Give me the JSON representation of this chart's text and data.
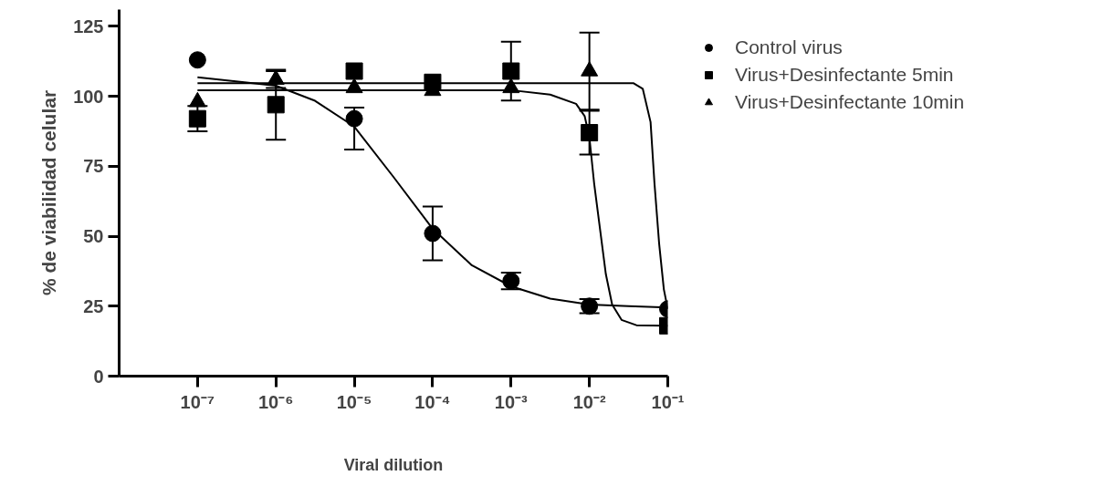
{
  "chart_data": {
    "type": "scatter",
    "xlabel": "Viral dilution",
    "ylabel": "% de viabilidad celular",
    "log": "x",
    "grid": false,
    "legend": "top right",
    "xlim": [
      1e-08,
      0.1
    ],
    "ylim": [
      0,
      131
    ],
    "xticks": [
      {
        "value": 1e-07,
        "label": "10⁻⁷"
      },
      {
        "value": 1e-06,
        "label": "10⁻⁶"
      },
      {
        "value": 1e-05,
        "label": "10⁻⁵"
      },
      {
        "value": 0.0001,
        "label": "10⁻⁴"
      },
      {
        "value": 0.001,
        "label": "10⁻³"
      },
      {
        "value": 0.01,
        "label": "10⁻²"
      },
      {
        "value": 0.1,
        "label": "10⁻¹"
      }
    ],
    "yticks": [
      0,
      25,
      50,
      75,
      100,
      125
    ],
    "x": [
      1e-07,
      1e-06,
      1e-05,
      0.0001,
      0.001,
      0.01,
      0.1
    ],
    "series": [
      {
        "name": "Control virus",
        "marker": "circle",
        "color": "#000000",
        "values": [
          113,
          null,
          92,
          51,
          34,
          25,
          24
        ],
        "errors": [
          null,
          null,
          [
            81,
            96
          ],
          9.6,
          3,
          2.5,
          null
        ]
      },
      {
        "name": "Virus+Desinfectante 5min",
        "marker": "square",
        "color": "#000000",
        "values": [
          92,
          97,
          109,
          105,
          109,
          87,
          18
        ],
        "errors": [
          4.5,
          12.5,
          null,
          null,
          10.5,
          7.8,
          null
        ]
      },
      {
        "name": "Virus+Desinfectante 10min",
        "marker": "triangle",
        "color": "#000000",
        "values": [
          98,
          106,
          103,
          102,
          103,
          109,
          null
        ],
        "errors": [
          null,
          3,
          null,
          null,
          null,
          13.8,
          null
        ]
      },
      {
        "type": "line",
        "marker": "none",
        "color": "#000000",
        "x": [
          1e-07,
          1e-06,
          3.16e-06,
          1e-05,
          3.16e-05,
          0.0001,
          0.000316,
          0.001,
          0.00316,
          0.01,
          0.0316,
          0.1
        ],
        "values": [
          106.8,
          103.8,
          98.4,
          89.2,
          71.2,
          52.7,
          39.6,
          32.1,
          27.7,
          25.6,
          25,
          24.5
        ]
      },
      {
        "type": "line",
        "marker": "none",
        "color": "#000000",
        "x": [
          1e-07,
          0.001,
          0.00316,
          0.00676,
          0.00871,
          0.01,
          0.01148,
          0.0138,
          0.01622,
          0.0195,
          0.0257,
          0.0398,
          0.1
        ],
        "values": [
          102.2,
          102.2,
          100.6,
          97.3,
          92.9,
          85.3,
          69,
          51.6,
          36.4,
          25.6,
          20.1,
          18.2,
          18
        ]
      },
      {
        "type": "line",
        "marker": "none",
        "color": "#000000",
        "x": [
          1e-07,
          0.0363,
          0.0479,
          0.0603,
          0.0676,
          0.0776,
          0.0891,
          0.1
        ],
        "values": [
          104.7,
          104.7,
          102.7,
          90.8,
          69,
          47.3,
          31,
          23.9
        ]
      }
    ]
  }
}
